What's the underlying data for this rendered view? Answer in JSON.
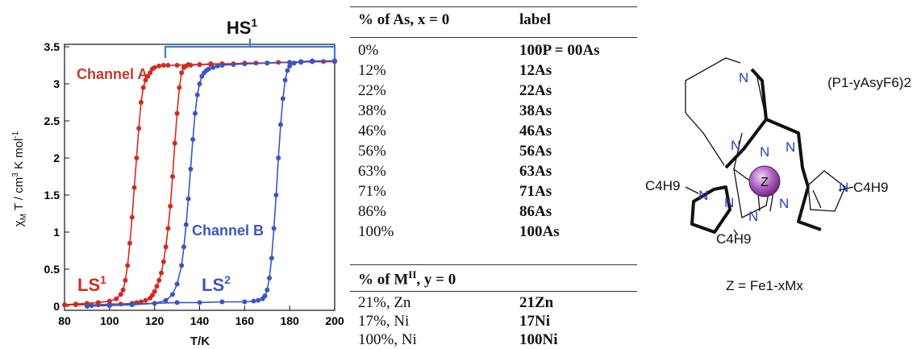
{
  "chart_data": {
    "type": "line",
    "xlabel": "T/K",
    "ylabel": "χM T / cm3 K mol-1",
    "ylabel_parts": {
      "chi": "χ",
      "chi_sub": "M",
      "t": " T / cm",
      "cm_sup": "3",
      "k": " K mol",
      "mol_sup": "-1"
    },
    "xlim": [
      80,
      200
    ],
    "ylim": [
      0,
      3.5
    ],
    "xticks": [
      "80",
      "100",
      "120",
      "140",
      "160",
      "180",
      "200"
    ],
    "yticks": [
      "0",
      "0.5",
      "1",
      "1.5",
      "2",
      "2.5",
      "3",
      "3.5"
    ],
    "annotations": {
      "hs": "HS",
      "hs_sup": "1",
      "channel_a": "Channel A",
      "channel_b": "Channel B",
      "ls1": "LS",
      "ls1_sup": "1",
      "ls2": "LS",
      "ls2_sup": "2"
    },
    "colors": {
      "red": "#d4291e",
      "blue": "#3a55c4",
      "bracket": "#3b7fd4"
    },
    "series": [
      {
        "color": "#d4291e",
        "x": [
          80,
          85,
          90,
          95,
          100,
          103,
          105,
          106,
          107,
          108,
          109,
          110,
          111,
          112,
          113,
          114,
          115,
          116,
          117,
          118,
          119,
          120,
          122,
          124,
          126,
          130,
          135,
          140,
          145,
          150,
          155,
          160,
          165,
          170,
          175,
          180,
          185,
          190,
          195,
          200
        ],
        "y": [
          0.02,
          0.03,
          0.04,
          0.05,
          0.07,
          0.1,
          0.16,
          0.22,
          0.35,
          0.55,
          0.85,
          1.2,
          1.6,
          2.0,
          2.4,
          2.75,
          2.95,
          3.05,
          3.1,
          3.15,
          3.2,
          3.22,
          3.24,
          3.25,
          3.25,
          3.25,
          3.26,
          3.26,
          3.27,
          3.27,
          3.27,
          3.28,
          3.28,
          3.28,
          3.29,
          3.29,
          3.29,
          3.3,
          3.3,
          3.3
        ]
      },
      {
        "color": "#d4291e",
        "x": [
          200,
          190,
          180,
          170,
          160,
          150,
          145,
          140,
          136,
          134,
          133,
          132,
          131,
          130,
          129,
          128,
          127,
          126,
          125,
          124,
          123,
          122,
          121,
          120,
          119,
          118,
          116,
          114,
          112,
          110,
          105,
          100,
          95,
          90,
          85,
          80
        ],
        "y": [
          3.3,
          3.3,
          3.29,
          3.28,
          3.27,
          3.27,
          3.26,
          3.26,
          3.25,
          3.24,
          3.22,
          3.15,
          2.95,
          2.6,
          2.2,
          1.75,
          1.35,
          1.05,
          0.8,
          0.6,
          0.45,
          0.35,
          0.27,
          0.2,
          0.15,
          0.11,
          0.08,
          0.06,
          0.05,
          0.04,
          0.03,
          0.03,
          0.02,
          0.02,
          0.02,
          0.02
        ]
      },
      {
        "color": "#3a55c4",
        "x": [
          90,
          100,
          110,
          120,
          125,
          128,
          130,
          132,
          133,
          134,
          135,
          136,
          137,
          138,
          139,
          140,
          141,
          142,
          143,
          144,
          146,
          148,
          150,
          155,
          160,
          170,
          180,
          190,
          200
        ],
        "y": [
          0.0,
          0.01,
          0.02,
          0.04,
          0.08,
          0.16,
          0.3,
          0.55,
          0.8,
          1.1,
          1.45,
          1.85,
          2.25,
          2.6,
          2.85,
          3.0,
          3.1,
          3.15,
          3.18,
          3.2,
          3.22,
          3.24,
          3.25,
          3.26,
          3.27,
          3.28,
          3.29,
          3.3,
          3.31
        ]
      },
      {
        "color": "#3a55c4",
        "x": [
          200,
          190,
          185,
          182,
          180,
          179,
          178,
          177,
          176,
          175,
          174,
          173,
          172,
          171,
          170,
          169,
          168,
          166,
          164,
          160,
          150,
          140,
          130,
          120,
          110,
          100,
          92
        ],
        "y": [
          3.31,
          3.31,
          3.3,
          3.28,
          3.24,
          3.18,
          3.05,
          2.8,
          2.45,
          2.0,
          1.5,
          1.05,
          0.65,
          0.38,
          0.22,
          0.14,
          0.1,
          0.08,
          0.07,
          0.06,
          0.06,
          0.05,
          0.05,
          0.04,
          0.03,
          0.02,
          0.01
        ]
      }
    ]
  },
  "table": {
    "header1": {
      "col1": "% of As, x = 0",
      "col2": "label"
    },
    "rows1": [
      {
        "pct": "0%",
        "label": "100P = 00As"
      },
      {
        "pct": "12%",
        "label": "12As"
      },
      {
        "pct": "22%",
        "label": "22As"
      },
      {
        "pct": "38%",
        "label": "38As"
      },
      {
        "pct": "46%",
        "label": "46As"
      },
      {
        "pct": "56%",
        "label": "56As"
      },
      {
        "pct": "63%",
        "label": "63As"
      },
      {
        "pct": "71%",
        "label": "71As"
      },
      {
        "pct": "86%",
        "label": "86As"
      },
      {
        "pct": "100%",
        "label": "100As"
      }
    ],
    "header2": {
      "prefix": "% of M",
      "sup": "II",
      "suffix": ", y = 0"
    },
    "rows2": [
      {
        "pct": "21%, Zn",
        "label": "21Zn"
      },
      {
        "pct": "17%, Ni",
        "label": "17Ni"
      },
      {
        "pct": "100%, Ni",
        "label": "100Ni"
      }
    ]
  },
  "structure": {
    "anion": "(P1-yAsyF6)2",
    "center": "Z",
    "z_label": "Z = Fe1-xMx",
    "n": "N",
    "c4h9": "C4H9"
  }
}
